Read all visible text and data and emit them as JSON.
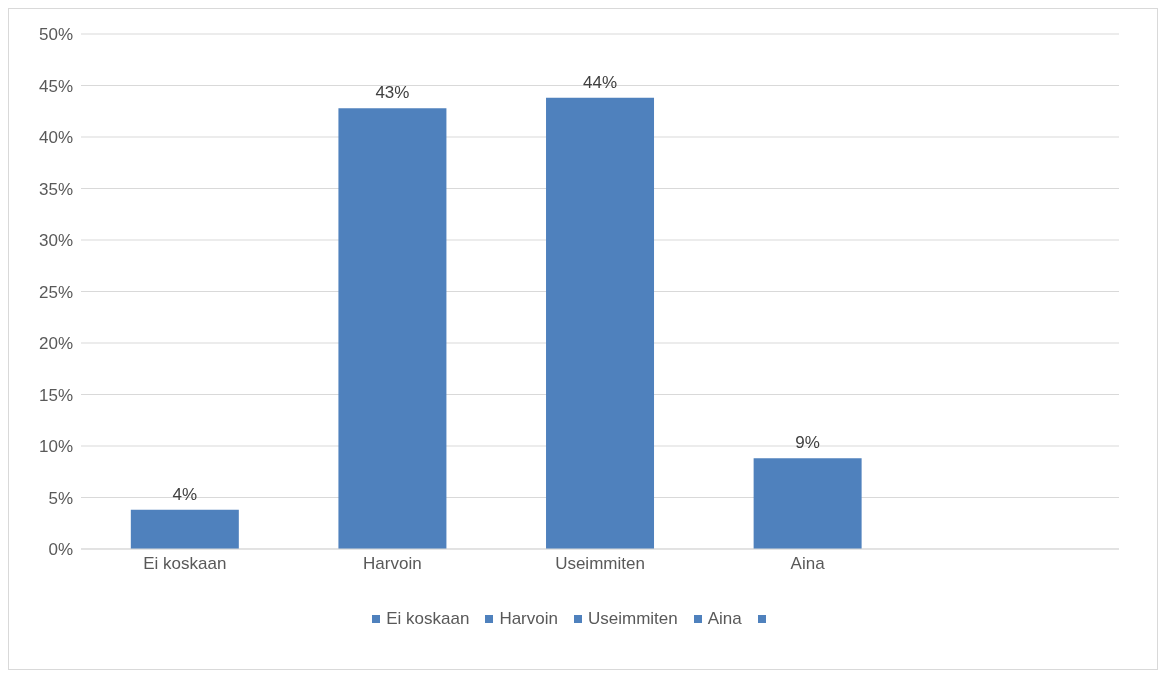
{
  "chart_data": {
    "type": "bar",
    "categories": [
      "Ei koskaan",
      "Harvoin",
      "Useimmiten",
      "Aina",
      null
    ],
    "stacked": true,
    "series": [
      {
        "name": "Ei koskaan",
        "color": "#4f81bd",
        "values": [
          3.8,
          null,
          null,
          null,
          null
        ],
        "value_labels": [
          "4%",
          null,
          null,
          null,
          null
        ]
      },
      {
        "name": "Harvoin",
        "color": "#4f81bd",
        "values": [
          null,
          42.8,
          null,
          null,
          null
        ],
        "value_labels": [
          null,
          "43%",
          null,
          null,
          null
        ]
      },
      {
        "name": "Useimmiten",
        "color": "#4f81bd",
        "values": [
          null,
          null,
          43.8,
          null,
          null
        ],
        "value_labels": [
          null,
          null,
          "44%",
          null,
          null
        ]
      },
      {
        "name": "Aina",
        "color": "#4f81bd",
        "values": [
          null,
          null,
          null,
          8.8,
          null
        ],
        "value_labels": [
          null,
          null,
          null,
          "9%",
          null
        ]
      },
      {
        "color": "#4f81bd",
        "values": [
          null,
          null,
          null,
          null,
          null
        ]
      }
    ],
    "ylim": [
      0,
      50
    ],
    "yticks": [
      {
        "value": 0,
        "label": "0%"
      },
      {
        "value": 5,
        "label": "5%"
      },
      {
        "value": 10,
        "label": "10%"
      },
      {
        "value": 15,
        "label": "15%"
      },
      {
        "value": 20,
        "label": "20%"
      },
      {
        "value": 25,
        "label": "25%"
      },
      {
        "value": 30,
        "label": "30%"
      },
      {
        "value": 35,
        "label": "35%"
      },
      {
        "value": 40,
        "label": "40%"
      },
      {
        "value": 45,
        "label": "45%"
      },
      {
        "value": 50,
        "label": "50%"
      }
    ],
    "grid": "y",
    "legend": "bottom"
  }
}
